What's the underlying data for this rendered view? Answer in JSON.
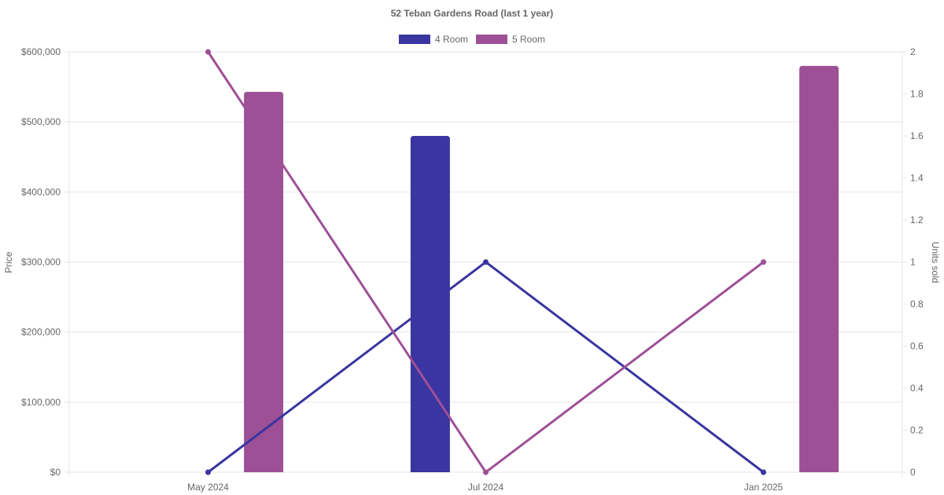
{
  "chart_data": {
    "type": "bar",
    "title": "52 Teban Gardens Road (last 1 year)",
    "categories": [
      "May 2024",
      "Jul 2024",
      "Jan 2025"
    ],
    "y_left": {
      "label": "Price",
      "min": 0,
      "max": 600000,
      "ticks": [
        "$0",
        "$100,000",
        "$200,000",
        "$300,000",
        "$400,000",
        "$500,000",
        "$600,000"
      ]
    },
    "y_right": {
      "label": "Units sold",
      "min": 0,
      "max": 2,
      "ticks": [
        "0",
        "0.2",
        "0.4",
        "0.6",
        "0.8",
        "1",
        "1.2",
        "1.4",
        "1.6",
        "1.8",
        "2"
      ]
    },
    "series": [
      {
        "name": "4 Room",
        "color": "#3a35a0",
        "prices": [
          null,
          480000,
          null
        ],
        "units": [
          0,
          1,
          0
        ]
      },
      {
        "name": "5 Room",
        "color": "#9e5096",
        "prices": [
          543000,
          null,
          580000
        ],
        "units": [
          2,
          0,
          1
        ]
      }
    ],
    "legend_position": "top",
    "grid": true
  }
}
